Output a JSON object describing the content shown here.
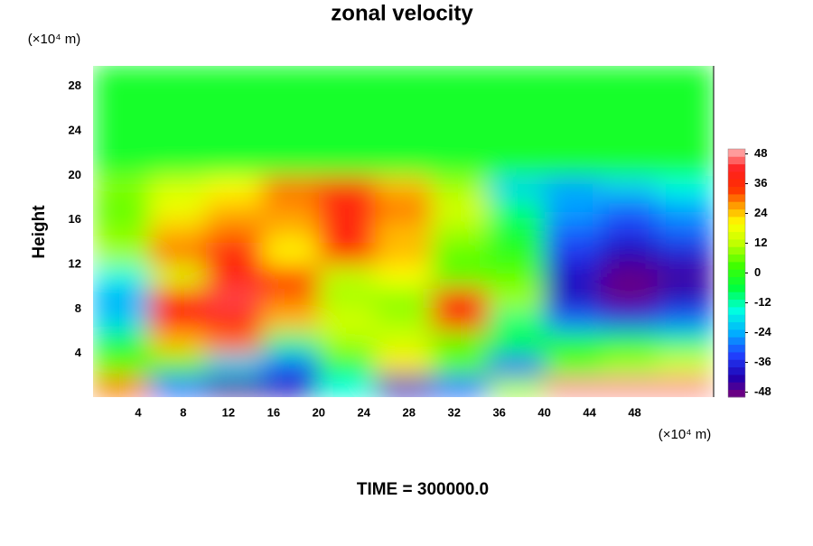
{
  "chart_data": {
    "type": "contour",
    "title": "zonal velocity",
    "y_unit": "(×10⁴ m)",
    "x_unit": "(×10⁴ m)",
    "y_label": "Height",
    "footer": "TIME = 300000.0",
    "x": [
      0,
      5,
      10,
      15,
      20,
      25,
      30,
      35,
      40,
      45,
      50,
      55
    ],
    "y": [
      0,
      2,
      4,
      6,
      8,
      10,
      12,
      14,
      16,
      18,
      20,
      22,
      24,
      26,
      28,
      30
    ],
    "values": [
      [
        30,
        -30,
        -45,
        -40,
        -15,
        -40,
        -30,
        10,
        48,
        48,
        48
      ],
      [
        5,
        5,
        -20,
        -30,
        -5,
        22,
        5,
        -30,
        5,
        10,
        15
      ],
      [
        -5,
        25,
        30,
        -10,
        10,
        15,
        5,
        -5,
        -5,
        -5,
        -10
      ],
      [
        -20,
        38,
        40,
        25,
        15,
        10,
        35,
        -10,
        -30,
        -35,
        -30
      ],
      [
        -25,
        40,
        44,
        30,
        10,
        8,
        40,
        10,
        -40,
        -48,
        -40
      ],
      [
        -15,
        15,
        38,
        35,
        12,
        20,
        5,
        5,
        -40,
        -48,
        -45
      ],
      [
        10,
        30,
        38,
        20,
        35,
        25,
        5,
        0,
        -35,
        -42,
        -38
      ],
      [
        8,
        25,
        30,
        25,
        38,
        25,
        10,
        -5,
        -30,
        -35,
        -30
      ],
      [
        5,
        18,
        25,
        28,
        38,
        30,
        15,
        -10,
        -25,
        -30,
        -25
      ],
      [
        8,
        15,
        20,
        30,
        35,
        25,
        10,
        -20,
        -25,
        -20,
        -15
      ],
      [
        -3,
        -3,
        -3,
        -3,
        -3,
        -3,
        -3,
        -3,
        -3,
        -3,
        -3
      ],
      [
        -3,
        -3,
        -3,
        -3,
        -3,
        -3,
        -3,
        -3,
        -3,
        -3,
        -3
      ],
      [
        -3,
        -3,
        -3,
        -3,
        -3,
        -3,
        -3,
        -3,
        -3,
        -3,
        -3
      ],
      [
        -3,
        -3,
        -3,
        -3,
        -3,
        -3,
        -3,
        -3,
        -3,
        -3,
        -3
      ],
      [
        -3,
        -3,
        -3,
        -3,
        -3,
        -3,
        -3,
        -3,
        -3,
        -3,
        -3
      ]
    ],
    "xlim": [
      0,
      55
    ],
    "ylim": [
      0,
      30
    ],
    "xticks": [
      4,
      8,
      12,
      16,
      20,
      24,
      28,
      32,
      36,
      40,
      44,
      48
    ],
    "yticks": [
      4,
      8,
      12,
      16,
      20,
      24,
      28
    ],
    "clim": [
      -50,
      50
    ],
    "cticks": [
      -48,
      -36,
      -24,
      -12,
      0,
      12,
      24,
      36,
      48
    ],
    "colorscale": [
      [
        -50,
        "#7a007a"
      ],
      [
        -42,
        "#2000b0"
      ],
      [
        -33,
        "#2040ff"
      ],
      [
        -24,
        "#00b0ff"
      ],
      [
        -15,
        "#00ffe0"
      ],
      [
        -6,
        "#00ff40"
      ],
      [
        3,
        "#40ff00"
      ],
      [
        12,
        "#c0ff00"
      ],
      [
        20,
        "#ffff00"
      ],
      [
        27,
        "#ffa000"
      ],
      [
        34,
        "#ff3000"
      ],
      [
        42,
        "#ff2020"
      ],
      [
        50,
        "#ffb8b8"
      ]
    ]
  }
}
